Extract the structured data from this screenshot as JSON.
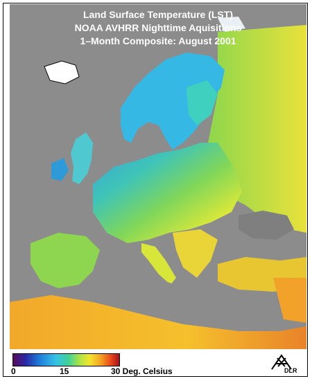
{
  "title": {
    "line1": "Land Surface Temperature (LST)",
    "line2": "NOAA AVHRR Nighttime Aquisitions",
    "line3": "1–Month Composite: August 2001"
  },
  "legend": {
    "tick_min": "0",
    "tick_mid": "15",
    "tick_max": "30 Deg. Celsius",
    "range_min": 0,
    "range_max": 30,
    "colors": [
      "#5a0a5a",
      "#2a2aa8",
      "#1e7fd9",
      "#36c1e8",
      "#3fd19a",
      "#a7e34a",
      "#f2e52f",
      "#f5a623",
      "#e8481c",
      "#a3121a"
    ]
  },
  "logo": {
    "text": "DLR",
    "icon": "dlr-logo-icon"
  },
  "colors": {
    "sea": "#8c8c8c",
    "ice": "#ffffff",
    "north_africa": "#f08a1e",
    "background": "#ffffff"
  }
}
